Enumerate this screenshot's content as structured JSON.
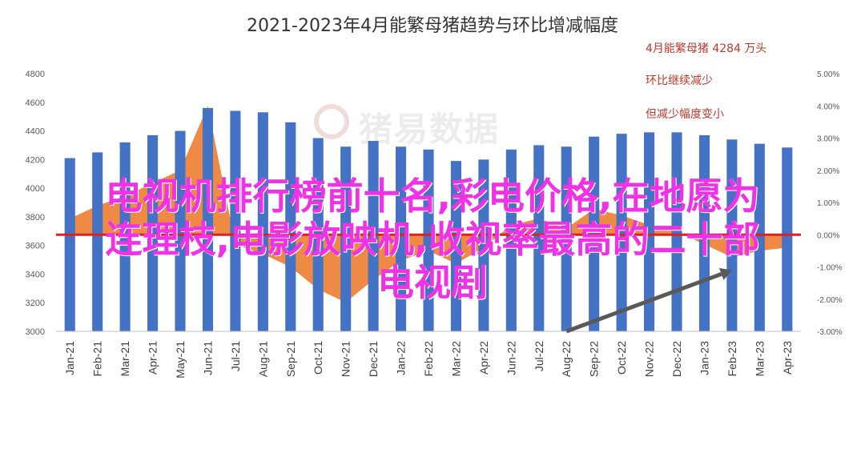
{
  "title": "2021-2023年4月能繁母猪趋势与环比增减幅度",
  "annotations": [
    "4月能繁母猪 4284 万头",
    "环比继续减少",
    "但减少幅度变小"
  ],
  "watermark": "猪易数据",
  "overlay_lines": [
    "电视机排行榜前十名,彩电价格,在地愿为",
    "连理枝,电影放映机,收视率最高的二十部",
    "电视剧"
  ],
  "colors": {
    "bar": "#4472c4",
    "area": "#ed7d31",
    "ref_line": "#e02020",
    "arrow": "#595959",
    "annotation": "#c0392b",
    "overlay": "#f032e6"
  },
  "chart_data": {
    "type": "bar",
    "title": "2021-2023年4月能繁母猪趋势与环比增减幅度",
    "categories": [
      "Jan-21",
      "Feb-21",
      "Mar-21",
      "Apr-21",
      "May-21",
      "Jun-21",
      "Jul-21",
      "Aug-21",
      "Sep-21",
      "Oct-21",
      "Nov-21",
      "Dec-21",
      "Jan-22",
      "Feb-22",
      "Mar-22",
      "Apr-22",
      "Jun-22",
      "Jul-22",
      "Aug-22",
      "Sep-22",
      "Oct-22",
      "Nov-22",
      "Dec-22",
      "Jan-23",
      "Feb-23",
      "Mar-23",
      "Apr-23"
    ],
    "series": [
      {
        "axis": "left",
        "type": "bar",
        "values": [
          4210,
          4250,
          4320,
          4370,
          4400,
          4560,
          4540,
          4530,
          4460,
          4350,
          4290,
          4330,
          4290,
          4270,
          4190,
          4200,
          4270,
          4300,
          4290,
          4360,
          4380,
          4390,
          4390,
          4370,
          4340,
          4310,
          4284
        ]
      },
      {
        "axis": "right",
        "type": "area",
        "values": [
          0.5,
          0.9,
          1.2,
          1.6,
          2.0,
          4.0,
          -0.3,
          -0.6,
          -1.0,
          -1.7,
          -2.1,
          -1.4,
          -0.8,
          -0.5,
          -0.9,
          -0.4,
          0.3,
          0.5,
          0.2,
          0.8,
          0.6,
          0.3,
          0.1,
          -0.3,
          -0.7,
          -0.5,
          -0.4
        ]
      }
    ],
    "y_left": {
      "min": 3000,
      "max": 4800,
      "ticks": [
        "3000",
        "3200",
        "3400",
        "3600",
        "3800",
        "4000",
        "4200",
        "4400",
        "4600",
        "4800"
      ]
    },
    "y_right": {
      "min": -3.0,
      "max": 5.0,
      "ticks": [
        "-3.00%",
        "-2.00%",
        "-1.00%",
        "0.00%",
        "1.00%",
        "2.00%",
        "3.00%",
        "4.00%",
        "5.00%"
      ]
    },
    "reference_line": 0.0,
    "trend_arrow": {
      "from_category": "Aug-22",
      "from_right_value": -3.0,
      "to_category": "Feb-23",
      "to_right_value": -1.1
    },
    "grid": false,
    "legend": "none"
  }
}
